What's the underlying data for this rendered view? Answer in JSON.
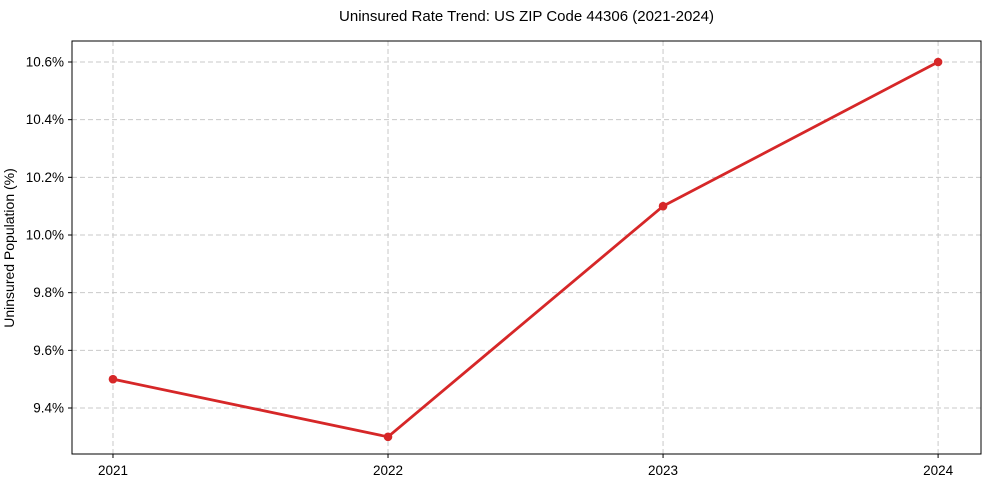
{
  "chart_data": {
    "type": "line",
    "title": "Uninsured Rate Trend: US ZIP Code 44306 (2021-2024)",
    "xlabel": "",
    "ylabel": "Uninsured Population (%)",
    "x": [
      2021,
      2022,
      2023,
      2024
    ],
    "series": [
      {
        "name": "Uninsured Population (%)",
        "values": [
          9.5,
          9.3,
          10.1,
          10.6
        ]
      }
    ],
    "x_tick_labels": [
      "2021",
      "2022",
      "2023",
      "2024"
    ],
    "y_ticks": [
      {
        "value": 9.4,
        "label": "9.4%"
      },
      {
        "value": 9.6,
        "label": "9.6%"
      },
      {
        "value": 9.8,
        "label": "9.8%"
      },
      {
        "value": 10.0,
        "label": "10.0%"
      },
      {
        "value": 10.2,
        "label": "10.2%"
      },
      {
        "value": 10.4,
        "label": "10.4%"
      },
      {
        "value": 10.6,
        "label": "10.6%"
      }
    ],
    "xlim": [
      2020.851,
      2024.156
    ],
    "ylim": [
      9.2405,
      10.6728
    ],
    "grid": true,
    "grid_style": "dashed",
    "legend_position": "none",
    "colors": {
      "line": "#d62728",
      "marker": "#d62728",
      "grid": "#c9c9c9",
      "axis": "#000000",
      "text": "#000000",
      "background": "#ffffff"
    }
  }
}
